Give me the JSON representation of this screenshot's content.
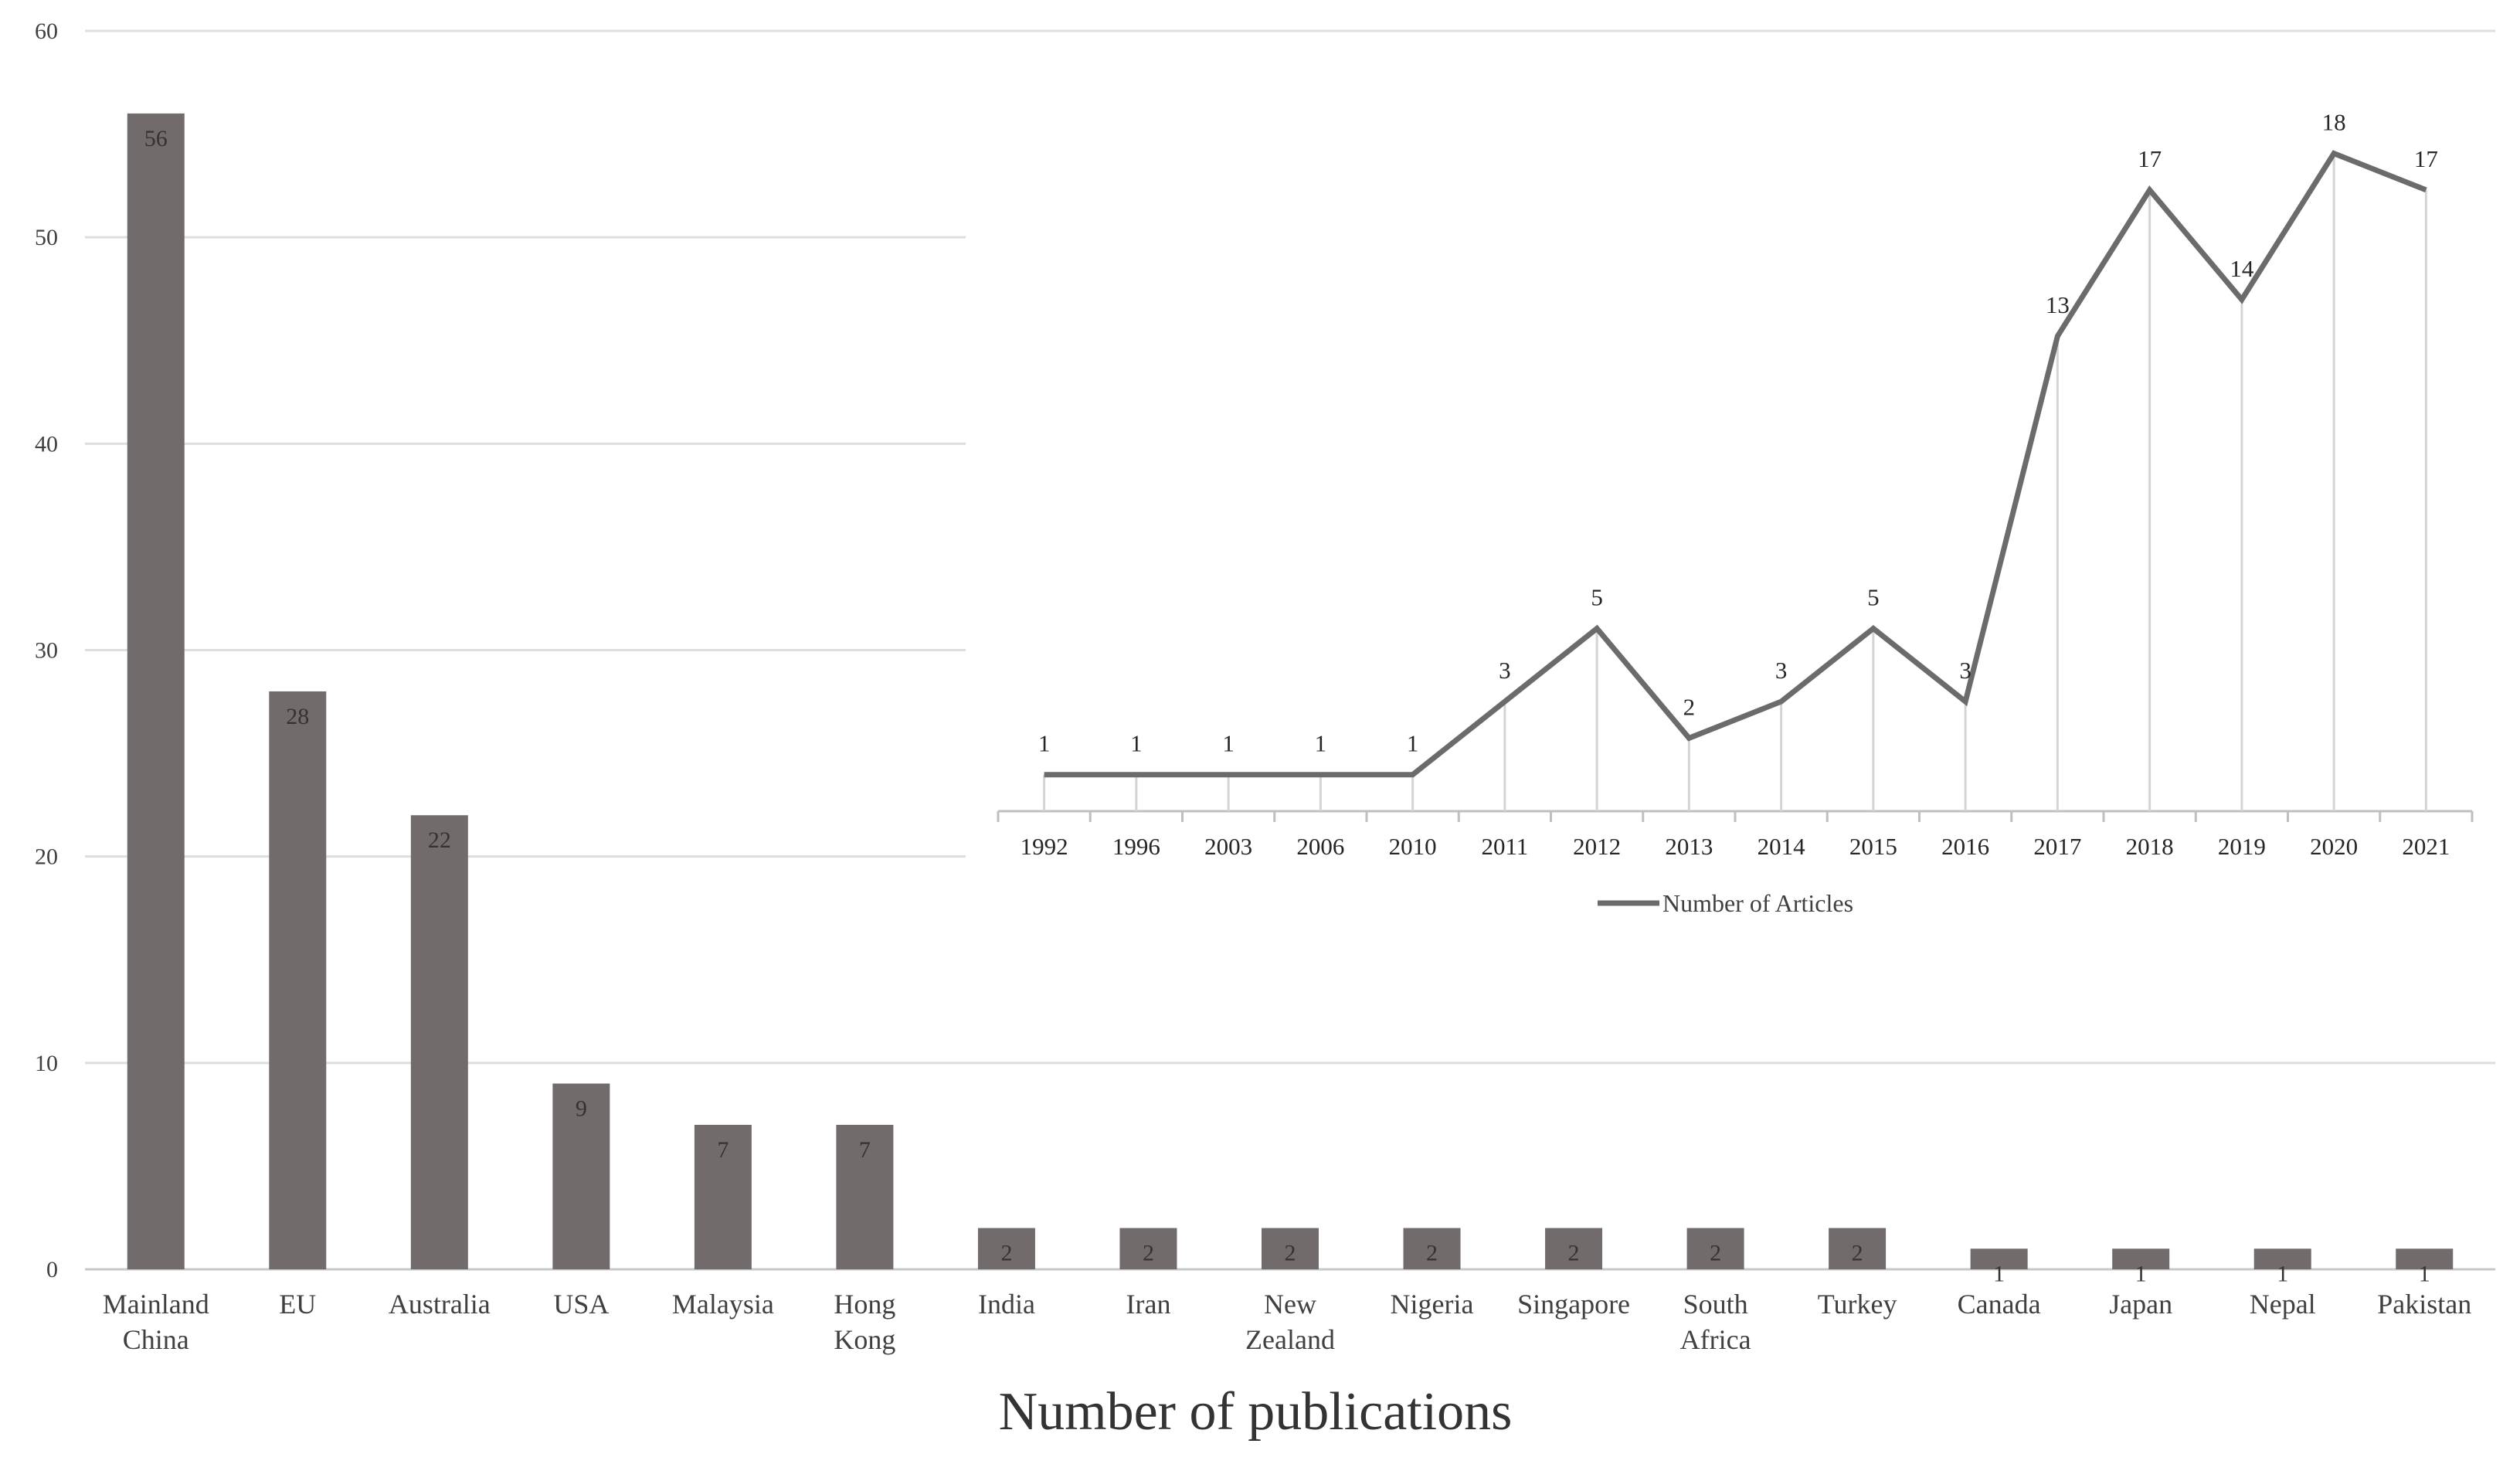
{
  "chart_data": [
    {
      "type": "bar",
      "xlabel": "Number of publications",
      "ylim": [
        0,
        60
      ],
      "yticks": [
        0,
        10,
        20,
        30,
        40,
        50,
        60
      ],
      "grid": true,
      "categories": [
        "Mainland China",
        "EU",
        "Australia",
        "USA",
        "Malaysia",
        "Hong Kong",
        "India",
        "Iran",
        "New Zealand",
        "Nigeria",
        "Singapore",
        "South Africa",
        "Turkey",
        "Canada",
        "Japan",
        "Nepal",
        "Pakistan"
      ],
      "values": [
        56,
        28,
        22,
        9,
        7,
        7,
        2,
        2,
        2,
        2,
        2,
        2,
        2,
        1,
        1,
        1,
        1
      ],
      "data_labels": true,
      "bar_color": "#716b6b"
    },
    {
      "type": "line",
      "legend": "bottom",
      "series": [
        {
          "name": "Number of Articles",
          "x": [
            "1992",
            "1996",
            "2003",
            "2006",
            "2010",
            "2011",
            "2012",
            "2013",
            "2014",
            "2015",
            "2016",
            "2017",
            "2018",
            "2019",
            "2020",
            "2021"
          ],
          "values": [
            1,
            1,
            1,
            1,
            1,
            3,
            5,
            2,
            3,
            5,
            3,
            13,
            17,
            14,
            18,
            17
          ]
        }
      ],
      "ylim": [
        0,
        20
      ],
      "data_labels": true,
      "line_color": "#6b6b6b"
    }
  ]
}
